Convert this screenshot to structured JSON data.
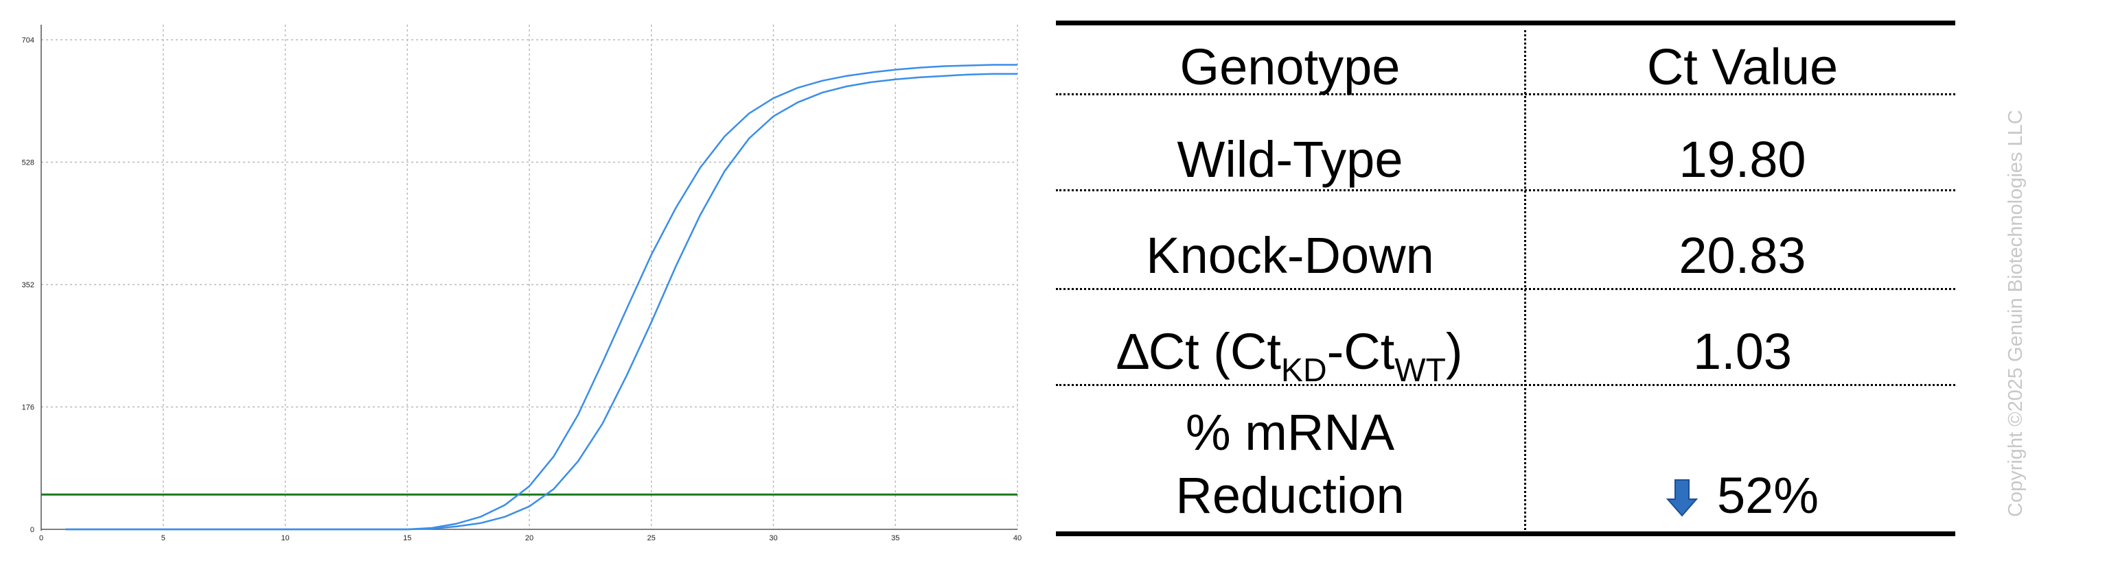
{
  "chart_data": {
    "type": "line",
    "title": "",
    "xlabel": "",
    "ylabel": "",
    "xlim": [
      0,
      40
    ],
    "ylim": [
      0,
      704
    ],
    "x_ticks": [
      0,
      5,
      10,
      15,
      20,
      25,
      30,
      35,
      40
    ],
    "y_ticks": [
      0,
      176,
      352,
      528,
      704
    ],
    "grid": true,
    "threshold": 50,
    "colors": {
      "curves": "#3a8ee8",
      "threshold": "#1a7a1a",
      "grid": "#b8b8b8"
    },
    "series": [
      {
        "x": [
          1,
          2,
          3,
          4,
          5,
          6,
          7,
          8,
          9,
          10,
          11,
          12,
          13,
          14,
          15,
          16,
          17,
          18,
          19,
          20,
          21,
          22,
          23,
          24,
          25,
          26,
          27,
          28,
          29,
          30,
          31,
          32,
          33,
          34,
          35,
          36,
          37,
          38,
          39,
          40
        ],
        "values": [
          0,
          0,
          0,
          0,
          0,
          0,
          0,
          0,
          0,
          0,
          0,
          0,
          0,
          0,
          0,
          2,
          8,
          18,
          35,
          62,
          105,
          165,
          240,
          318,
          395,
          462,
          520,
          565,
          598,
          620,
          635,
          645,
          652,
          657,
          661,
          664,
          666,
          667,
          668,
          668
        ]
      },
      {
        "x": [
          1,
          2,
          3,
          4,
          5,
          6,
          7,
          8,
          9,
          10,
          11,
          12,
          13,
          14,
          15,
          16,
          17,
          18,
          19,
          20,
          21,
          22,
          23,
          24,
          25,
          26,
          27,
          28,
          29,
          30,
          31,
          32,
          33,
          34,
          35,
          36,
          37,
          38,
          39,
          40
        ],
        "values": [
          0,
          0,
          0,
          0,
          0,
          0,
          0,
          0,
          0,
          0,
          0,
          0,
          0,
          0,
          0,
          1,
          4,
          9,
          18,
          33,
          58,
          98,
          152,
          222,
          298,
          378,
          452,
          515,
          562,
          594,
          614,
          628,
          637,
          643,
          647,
          650,
          652,
          654,
          655,
          655
        ]
      }
    ]
  },
  "table": {
    "headers": [
      "Genotype",
      "Ct Value"
    ],
    "rows": [
      {
        "label": "Wild-Type",
        "value": "19.80"
      },
      {
        "label": "Knock-Down",
        "value": "20.83"
      }
    ],
    "delta_row": {
      "prefix": "∆Ct (Ct",
      "sub1": "KD",
      "mid": "-Ct",
      "sub2": "WT",
      "suffix": ")",
      "value": "1.03"
    },
    "reduction_row": {
      "label_line1": "% mRNA",
      "label_line2": "Reduction",
      "value": "52%",
      "arrow_icon": "down-arrow-icon",
      "arrow_color": "#2f6fc0"
    }
  },
  "copyright": "Copyright ©2025 Genuin Biotechnologies LLC"
}
